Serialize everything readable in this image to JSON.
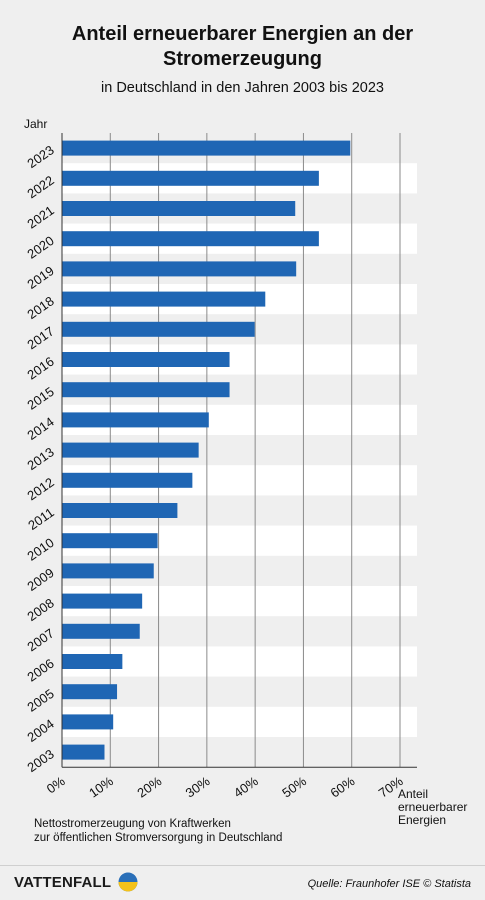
{
  "header": {
    "title": "Anteil erneuerbarer Energien an der Stromerzeugung",
    "subtitle": "in Deutschland in den Jahren 2003 bis 2023"
  },
  "footer": {
    "note_line1": "Nettostromerzeugung von Kraftwerken",
    "note_line2": "zur öffentlichen Stromversorgung in Deutschland",
    "brand": "VATTENFALL",
    "source": "Quelle: Fraunhofer ISE © Statista"
  },
  "chart_data": {
    "type": "bar",
    "orientation": "horizontal",
    "title": "Anteil erneuerbarer Energien an der Stromerzeugung",
    "subtitle": "in Deutschland in den Jahren 2003 bis 2023",
    "ylabel": "Jahr",
    "xlabel": "Anteil erneuerbarer Energien",
    "xlabel_lines": [
      "Anteil",
      "erneuerbarer",
      "Energien"
    ],
    "xlim": [
      0,
      70
    ],
    "x_ticks": [
      0,
      10,
      20,
      30,
      40,
      50,
      60,
      70
    ],
    "x_tick_labels": [
      "0%",
      "10%",
      "20%",
      "30%",
      "40%",
      "50%",
      "60%",
      "70%"
    ],
    "grid": "vertical",
    "bar_color": "#1f66b4",
    "categories": [
      "2023",
      "2022",
      "2021",
      "2020",
      "2019",
      "2018",
      "2017",
      "2016",
      "2015",
      "2014",
      "2013",
      "2012",
      "2011",
      "2010",
      "2009",
      "2008",
      "2007",
      "2006",
      "2005",
      "2004",
      "2003"
    ],
    "values": [
      59.7,
      53.2,
      48.3,
      53.2,
      48.5,
      42.1,
      39.9,
      34.7,
      34.7,
      30.4,
      28.3,
      27.0,
      23.9,
      19.8,
      19.0,
      16.6,
      16.1,
      12.5,
      11.4,
      10.6,
      8.8
    ]
  }
}
